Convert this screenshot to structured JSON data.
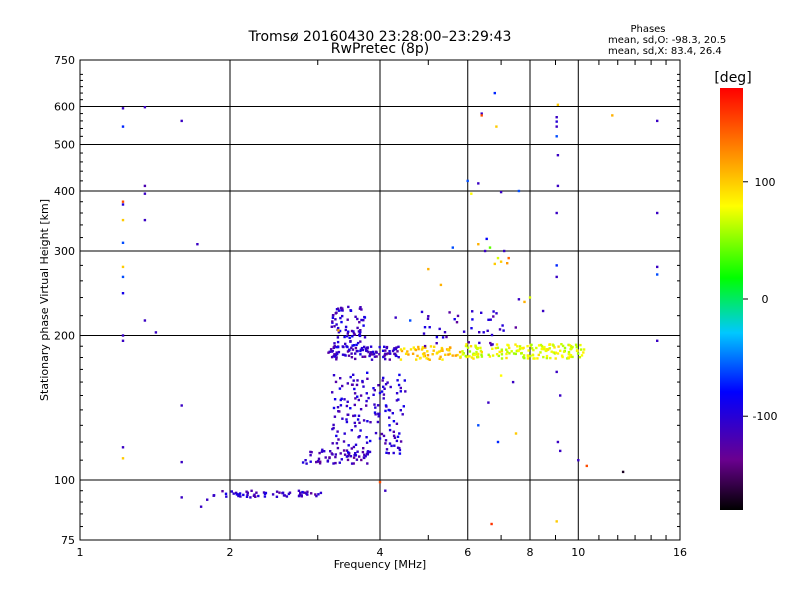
{
  "chart_data": {
    "type": "scatter",
    "title": "Tromsø 20160430 23:28:00–23:29:43",
    "subtitle": "RwPretec (8p)",
    "xlabel": "Frequency [MHz]",
    "ylabel": "Stationary phase Virtual Height [km]",
    "x_scale": "log",
    "y_scale": "log",
    "xlim": [
      1,
      16
    ],
    "ylim": [
      75,
      750
    ],
    "x_ticks": [
      1,
      2,
      4,
      6,
      8,
      10,
      16
    ],
    "x_tick_labels": [
      "1",
      "2",
      "4",
      "6",
      "8",
      "10",
      "16"
    ],
    "y_ticks": [
      75,
      100,
      200,
      300,
      400,
      500,
      600,
      750
    ],
    "y_tick_labels": [
      "75",
      "100",
      "200",
      "300",
      "400",
      "500",
      "600",
      "750"
    ],
    "grid": true,
    "stats": {
      "title": "Phases",
      "line_o": "mean, sd,O: -98.3, 20.5",
      "line_x": "mean, sd,X: 83.4, 26.4"
    },
    "colorbar": {
      "label": "[deg]",
      "min": -180,
      "max": 180,
      "ticks": [
        100,
        0,
        -100
      ],
      "tick_labels": [
        "100",
        "0",
        "-100"
      ],
      "colormap": "rainbow"
    },
    "clusters": [
      {
        "name": "",
        "x_range": [
          1.85,
          3.05
        ],
        "y_range": [
          92,
          95
        ],
        "phase": -110,
        "count": 60
      },
      {
        "name": "",
        "x_range": [
          2.8,
          3.8
        ],
        "y_range": [
          108,
          116
        ],
        "phase": -115,
        "count": 60
      },
      {
        "name": "",
        "x_range": [
          3.2,
          4.5
        ],
        "y_range": [
          113,
          168
        ],
        "phase": -105,
        "count": 160
      },
      {
        "name": "",
        "x_range": [
          3.15,
          4.4
        ],
        "y_range": [
          178,
          190
        ],
        "phase": -110,
        "count": 90
      },
      {
        "name": "",
        "x_range": [
          3.2,
          3.75
        ],
        "y_range": [
          188,
          230
        ],
        "phase": -105,
        "count": 80
      },
      {
        "name": "",
        "x_range": [
          4.4,
          5.8
        ],
        "y_range": [
          178,
          190
        ],
        "phase": 100,
        "count": 60
      },
      {
        "name": "",
        "x_range": [
          5.8,
          10.3
        ],
        "y_range": [
          179,
          192
        ],
        "phase": 75,
        "count": 160
      },
      {
        "name": "",
        "x_range": [
          4.8,
          7.5
        ],
        "y_range": [
          190,
          225
        ],
        "phase": -110,
        "count": 40
      }
    ],
    "points": [
      {
        "x": 1.22,
        "y": 595,
        "phase": -110
      },
      {
        "x": 1.22,
        "y": 545,
        "phase": -70
      },
      {
        "x": 1.35,
        "y": 598,
        "phase": -110
      },
      {
        "x": 1.6,
        "y": 560,
        "phase": -110
      },
      {
        "x": 1.35,
        "y": 410,
        "phase": -120
      },
      {
        "x": 1.35,
        "y": 395,
        "phase": -110
      },
      {
        "x": 1.22,
        "y": 380,
        "phase": 150
      },
      {
        "x": 1.22,
        "y": 375,
        "phase": -100
      },
      {
        "x": 1.22,
        "y": 348,
        "phase": 100
      },
      {
        "x": 1.35,
        "y": 348,
        "phase": -110
      },
      {
        "x": 1.22,
        "y": 312,
        "phase": -60
      },
      {
        "x": 1.72,
        "y": 310,
        "phase": -110
      },
      {
        "x": 1.22,
        "y": 278,
        "phase": 100
      },
      {
        "x": 1.22,
        "y": 265,
        "phase": -60
      },
      {
        "x": 1.22,
        "y": 245,
        "phase": -90
      },
      {
        "x": 1.35,
        "y": 215,
        "phase": -110
      },
      {
        "x": 1.22,
        "y": 200,
        "phase": -110
      },
      {
        "x": 1.22,
        "y": 195,
        "phase": -110
      },
      {
        "x": 1.42,
        "y": 203,
        "phase": -110
      },
      {
        "x": 1.6,
        "y": 143,
        "phase": -110
      },
      {
        "x": 1.22,
        "y": 117,
        "phase": -110
      },
      {
        "x": 1.22,
        "y": 111,
        "phase": 100
      },
      {
        "x": 1.6,
        "y": 109,
        "phase": -110
      },
      {
        "x": 1.6,
        "y": 92,
        "phase": -110
      },
      {
        "x": 1.75,
        "y": 88,
        "phase": -110
      },
      {
        "x": 1.8,
        "y": 91,
        "phase": -110
      },
      {
        "x": 6.0,
        "y": 420,
        "phase": -60
      },
      {
        "x": 6.3,
        "y": 415,
        "phase": -110
      },
      {
        "x": 6.1,
        "y": 395,
        "phase": 80
      },
      {
        "x": 7.0,
        "y": 398,
        "phase": -110
      },
      {
        "x": 6.8,
        "y": 640,
        "phase": -70
      },
      {
        "x": 6.4,
        "y": 580,
        "phase": -110
      },
      {
        "x": 6.4,
        "y": 575,
        "phase": 150
      },
      {
        "x": 6.85,
        "y": 545,
        "phase": 100
      },
      {
        "x": 9.1,
        "y": 605,
        "phase": 100
      },
      {
        "x": 9.05,
        "y": 570,
        "phase": -110
      },
      {
        "x": 9.05,
        "y": 558,
        "phase": -100
      },
      {
        "x": 9.05,
        "y": 545,
        "phase": -110
      },
      {
        "x": 9.05,
        "y": 520,
        "phase": -60
      },
      {
        "x": 11.7,
        "y": 575,
        "phase": 110
      },
      {
        "x": 14.4,
        "y": 560,
        "phase": -110
      },
      {
        "x": 9.1,
        "y": 475,
        "phase": -110
      },
      {
        "x": 9.1,
        "y": 410,
        "phase": -110
      },
      {
        "x": 7.6,
        "y": 400,
        "phase": -60
      },
      {
        "x": 9.05,
        "y": 360,
        "phase": -110
      },
      {
        "x": 14.4,
        "y": 360,
        "phase": -110
      },
      {
        "x": 5.6,
        "y": 305,
        "phase": -60
      },
      {
        "x": 6.3,
        "y": 310,
        "phase": 110
      },
      {
        "x": 6.55,
        "y": 318,
        "phase": -80
      },
      {
        "x": 6.5,
        "y": 300,
        "phase": -110
      },
      {
        "x": 6.65,
        "y": 305,
        "phase": 40
      },
      {
        "x": 7.1,
        "y": 300,
        "phase": -110
      },
      {
        "x": 6.9,
        "y": 290,
        "phase": 70
      },
      {
        "x": 6.8,
        "y": 282,
        "phase": 100
      },
      {
        "x": 7.0,
        "y": 285,
        "phase": 100
      },
      {
        "x": 7.2,
        "y": 283,
        "phase": 120
      },
      {
        "x": 7.25,
        "y": 290,
        "phase": 140
      },
      {
        "x": 9.05,
        "y": 280,
        "phase": -70
      },
      {
        "x": 9.05,
        "y": 265,
        "phase": -110
      },
      {
        "x": 14.4,
        "y": 278,
        "phase": -110
      },
      {
        "x": 14.4,
        "y": 268,
        "phase": -60
      },
      {
        "x": 5.0,
        "y": 275,
        "phase": 110
      },
      {
        "x": 5.3,
        "y": 255,
        "phase": 110
      },
      {
        "x": 7.6,
        "y": 238,
        "phase": -110
      },
      {
        "x": 7.8,
        "y": 235,
        "phase": 110
      },
      {
        "x": 8.0,
        "y": 240,
        "phase": 70
      },
      {
        "x": 8.5,
        "y": 225,
        "phase": -110
      },
      {
        "x": 14.4,
        "y": 195,
        "phase": -110
      },
      {
        "x": 9.05,
        "y": 168,
        "phase": -110
      },
      {
        "x": 9.2,
        "y": 150,
        "phase": -110
      },
      {
        "x": 7.0,
        "y": 165,
        "phase": 80
      },
      {
        "x": 7.4,
        "y": 160,
        "phase": -110
      },
      {
        "x": 6.6,
        "y": 145,
        "phase": -110
      },
      {
        "x": 6.3,
        "y": 130,
        "phase": -60
      },
      {
        "x": 7.5,
        "y": 125,
        "phase": 100
      },
      {
        "x": 6.9,
        "y": 120,
        "phase": -70
      },
      {
        "x": 9.1,
        "y": 120,
        "phase": -110
      },
      {
        "x": 9.2,
        "y": 115,
        "phase": -110
      },
      {
        "x": 10.0,
        "y": 110,
        "phase": -110
      },
      {
        "x": 10.4,
        "y": 107,
        "phase": 150
      },
      {
        "x": 12.3,
        "y": 104,
        "phase": -170
      },
      {
        "x": 6.7,
        "y": 81,
        "phase": 160
      },
      {
        "x": 9.05,
        "y": 82,
        "phase": 100
      },
      {
        "x": 4.0,
        "y": 99,
        "phase": 150
      },
      {
        "x": 4.1,
        "y": 95,
        "phase": -110
      },
      {
        "x": 3.3,
        "y": 205,
        "phase": 110
      },
      {
        "x": 4.6,
        "y": 215,
        "phase": -60
      },
      {
        "x": 4.3,
        "y": 218,
        "phase": -110
      }
    ]
  }
}
